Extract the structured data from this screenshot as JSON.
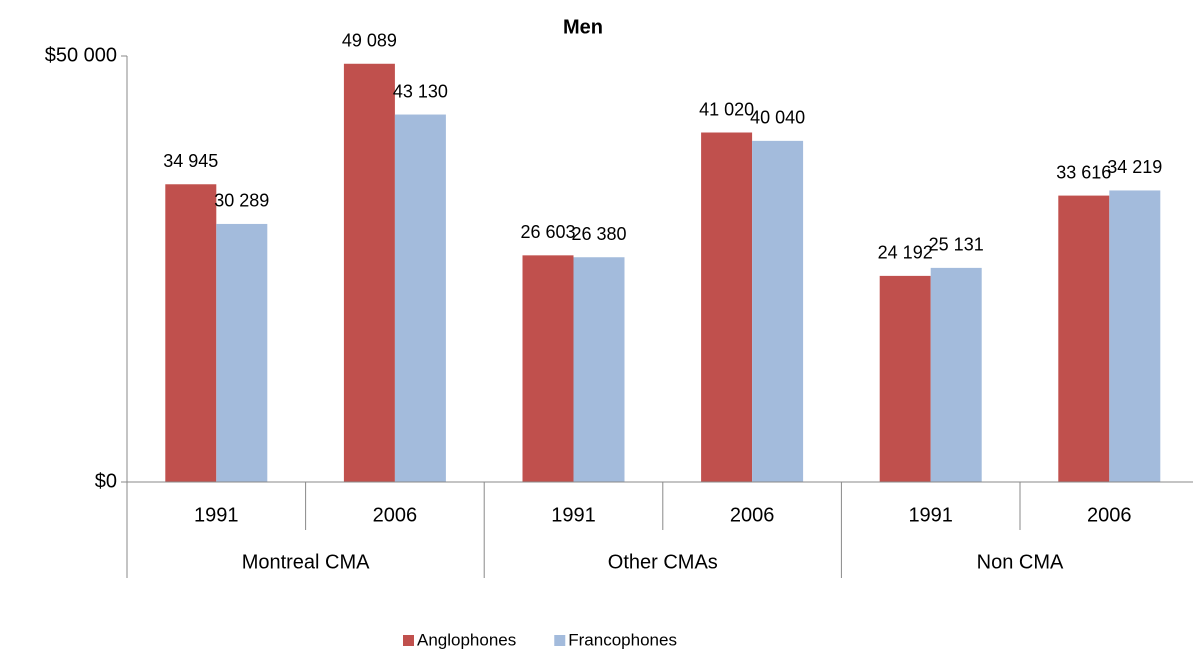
{
  "chart_data": {
    "type": "bar",
    "title": "Men",
    "categories": [
      "1991",
      "2006",
      "1991",
      "2006",
      "1991",
      "2006"
    ],
    "groups": [
      "Montreal CMA",
      "Other CMAs",
      "Non CMA"
    ],
    "series": [
      {
        "name": "Anglophones",
        "color": "#c0504d",
        "values": [
          34945,
          49089,
          26603,
          41020,
          24192,
          33616
        ],
        "value_labels": [
          "34 945",
          "49 089",
          "26 603",
          "41 020",
          "24 192",
          "33 616"
        ]
      },
      {
        "name": "Francophones",
        "color": "#a3bbdc",
        "values": [
          30289,
          43130,
          26380,
          40040,
          25131,
          34219
        ],
        "value_labels": [
          "30 289",
          "43 130",
          "26 380",
          "40 040",
          "25 131",
          "34 219"
        ]
      }
    ],
    "ylim": [
      0,
      50000
    ],
    "yticks": [
      {
        "value": 0,
        "label": "$0"
      },
      {
        "value": 50000,
        "label": "$50 000"
      }
    ]
  }
}
